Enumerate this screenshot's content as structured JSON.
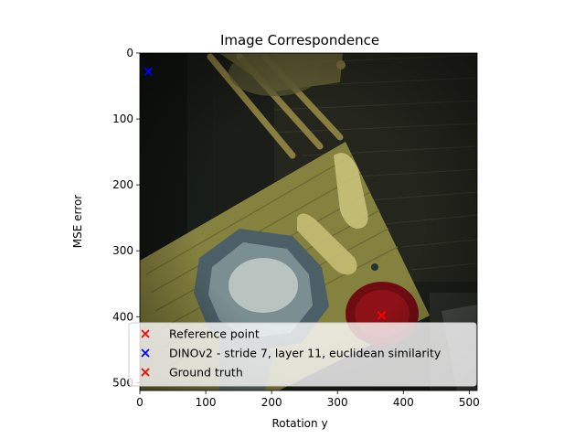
{
  "chart_data": {
    "type": "scatter",
    "title": "Image Correspondence",
    "xlabel": "Rotation y",
    "ylabel": "MSE error",
    "xlim": [
      -22,
      512
    ],
    "ylim": [
      512,
      0
    ],
    "y_inverted": true,
    "background_image": "dark overhead render of a wooden table with a bowl and red plate",
    "x_ticks": [
      0,
      100,
      200,
      300,
      400,
      500
    ],
    "y_ticks": [
      0,
      100,
      200,
      300,
      400,
      500
    ],
    "grid": false,
    "legend_placement": "lower-right",
    "series": [
      {
        "name": "Reference point",
        "marker": "x",
        "color": "#ff0000",
        "points": [
          [
            367,
            398
          ]
        ]
      },
      {
        "name": "DINOv2 - stride 7, layer 11, euclidean similarity",
        "marker": "x",
        "color": "#0000ff",
        "points": [
          [
            13,
            28
          ]
        ]
      },
      {
        "name": "Ground truth",
        "marker": "x",
        "color": "#ff0000",
        "points": [
          [
            367,
            398
          ]
        ]
      }
    ]
  }
}
